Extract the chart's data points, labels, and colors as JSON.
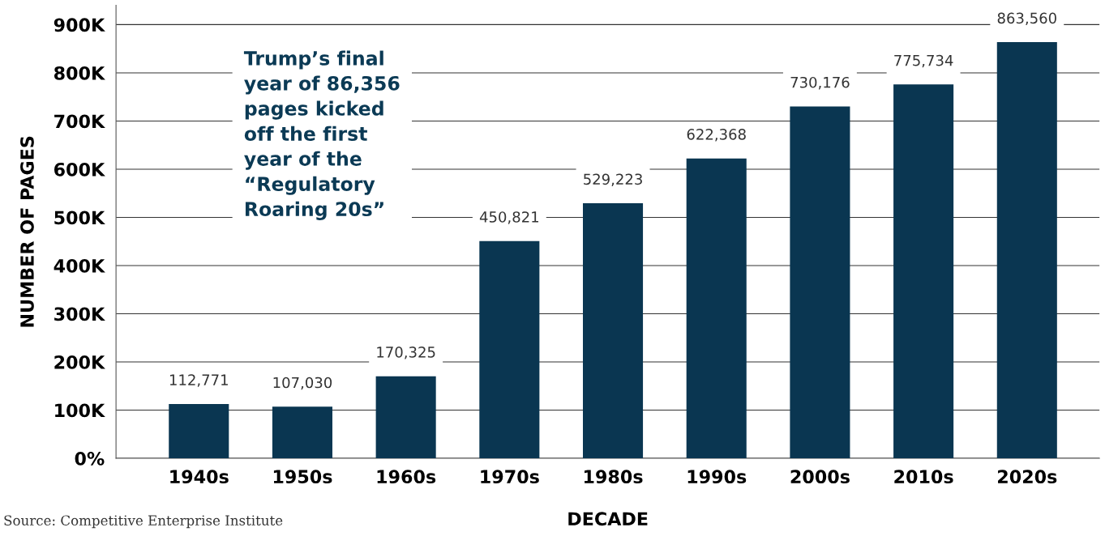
{
  "chart_data": {
    "type": "bar",
    "xlabel": "DECADE",
    "ylabel": "NUMBER OF PAGES",
    "categories": [
      "1940s",
      "1950s",
      "1960s",
      "1970s",
      "1980s",
      "1990s",
      "2000s",
      "2010s",
      "2020s"
    ],
    "values": [
      112771,
      107030,
      170325,
      450821,
      529223,
      622368,
      730176,
      775734,
      863560
    ],
    "value_labels": [
      "112,771",
      "107,030",
      "170,325",
      "450,821",
      "529,223",
      "622,368",
      "730,176",
      "775,734",
      "863,560"
    ],
    "color": "#0a3651",
    "ylim": [
      0,
      940000
    ],
    "yticks": [
      {
        "value": 0,
        "label": "0%"
      },
      {
        "value": 100000,
        "label": "100K"
      },
      {
        "value": 200000,
        "label": "200K"
      },
      {
        "value": 300000,
        "label": "300K"
      },
      {
        "value": 400000,
        "label": "400K"
      },
      {
        "value": 500000,
        "label": "500K"
      },
      {
        "value": 600000,
        "label": "600K"
      },
      {
        "value": 700000,
        "label": "700K"
      },
      {
        "value": 800000,
        "label": "800K"
      },
      {
        "value": 900000,
        "label": "900K"
      }
    ],
    "grid": "y",
    "legend": false,
    "annotations": [
      "Trump’s final\nyear of 86,356\npages kicked\noff the first\nyear of the\n“Regulatory\nRoaring 20s”",
      "Source: Competitive Enterprise Institute"
    ]
  }
}
